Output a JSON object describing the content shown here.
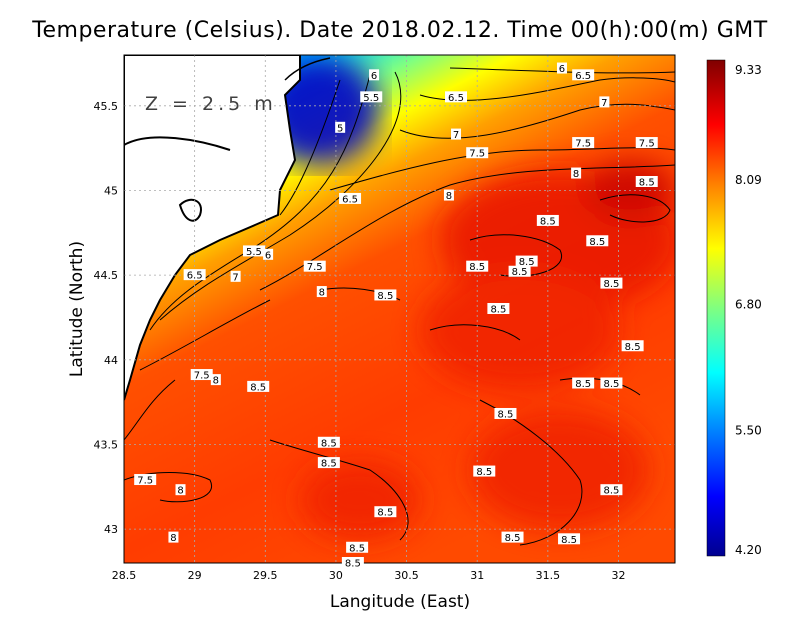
{
  "title": "Temperature (Celsius). Date 2018.02.12. Time 00(h):00(m)  GMT",
  "depth_label": "Z = 2.5 m",
  "x_axis": {
    "label": "Langitude (East)",
    "ticks": [
      {
        "value": 28.5,
        "label": "28.5"
      },
      {
        "value": 29,
        "label": "29"
      },
      {
        "value": 29.5,
        "label": "29.5"
      },
      {
        "value": 30,
        "label": "30"
      },
      {
        "value": 30.5,
        "label": "30.5"
      },
      {
        "value": 31,
        "label": "31"
      },
      {
        "value": 31.5,
        "label": "31.5"
      },
      {
        "value": 32,
        "label": "32"
      }
    ],
    "range": [
      28.5,
      32.4
    ]
  },
  "y_axis": {
    "label": "Latitude (North)",
    "ticks": [
      {
        "value": 43,
        "label": "43"
      },
      {
        "value": 43.5,
        "label": "43.5"
      },
      {
        "value": 44,
        "label": "44"
      },
      {
        "value": 44.5,
        "label": "44.5"
      },
      {
        "value": 45,
        "label": "45"
      },
      {
        "value": 45.5,
        "label": "45.5"
      }
    ],
    "range": [
      42.8,
      45.8
    ]
  },
  "colorbar": {
    "min": 4.2,
    "max": 9.33,
    "ticks": [
      {
        "value": 9.33,
        "label": "9.33"
      },
      {
        "value": 8.09,
        "label": "8.09"
      },
      {
        "value": 6.8,
        "label": "6.80"
      },
      {
        "value": 5.5,
        "label": "5.50"
      },
      {
        "value": 4.2,
        "label": "4.20"
      }
    ],
    "colors": [
      "#00008f",
      "#0000ff",
      "#0080ff",
      "#00ffff",
      "#80ff80",
      "#ffff00",
      "#ff8000",
      "#ff0000",
      "#800000"
    ]
  },
  "contour_labels": [
    {
      "lon": 30.25,
      "lat": 45.55,
      "label": "5.5"
    },
    {
      "lon": 30.03,
      "lat": 45.37,
      "label": "5"
    },
    {
      "lon": 30.27,
      "lat": 45.68,
      "label": "6"
    },
    {
      "lon": 30.85,
      "lat": 45.55,
      "label": "6.5"
    },
    {
      "lon": 30.85,
      "lat": 45.33,
      "label": "7"
    },
    {
      "lon": 31.0,
      "lat": 45.22,
      "label": "7.5"
    },
    {
      "lon": 31.6,
      "lat": 45.72,
      "label": "6"
    },
    {
      "lon": 31.75,
      "lat": 45.68,
      "label": "6.5"
    },
    {
      "lon": 31.9,
      "lat": 45.52,
      "label": "7"
    },
    {
      "lon": 31.75,
      "lat": 45.28,
      "label": "7.5"
    },
    {
      "lon": 31.7,
      "lat": 45.1,
      "label": "8"
    },
    {
      "lon": 32.2,
      "lat": 45.28,
      "label": "7.5"
    },
    {
      "lon": 32.2,
      "lat": 45.05,
      "label": "8.5"
    },
    {
      "lon": 30.1,
      "lat": 44.95,
      "label": "6.5"
    },
    {
      "lon": 30.8,
      "lat": 44.97,
      "label": "8"
    },
    {
      "lon": 29.42,
      "lat": 44.64,
      "label": "5.5"
    },
    {
      "lon": 29.52,
      "lat": 44.62,
      "label": "6"
    },
    {
      "lon": 29.0,
      "lat": 44.5,
      "label": "6.5"
    },
    {
      "lon": 29.29,
      "lat": 44.49,
      "label": "7"
    },
    {
      "lon": 29.85,
      "lat": 44.55,
      "label": "7.5"
    },
    {
      "lon": 29.9,
      "lat": 44.4,
      "label": "8"
    },
    {
      "lon": 30.35,
      "lat": 44.38,
      "label": "8.5"
    },
    {
      "lon": 31.5,
      "lat": 44.82,
      "label": "8.5"
    },
    {
      "lon": 31.85,
      "lat": 44.7,
      "label": "8.5"
    },
    {
      "lon": 31.0,
      "lat": 44.55,
      "label": "8.5"
    },
    {
      "lon": 31.3,
      "lat": 44.52,
      "label": "8.5"
    },
    {
      "lon": 31.35,
      "lat": 44.58,
      "label": "8.5"
    },
    {
      "lon": 31.95,
      "lat": 44.45,
      "label": "8.5"
    },
    {
      "lon": 31.15,
      "lat": 44.3,
      "label": "8.5"
    },
    {
      "lon": 32.1,
      "lat": 44.08,
      "label": "8.5"
    },
    {
      "lon": 29.05,
      "lat": 43.91,
      "label": "7.5"
    },
    {
      "lon": 29.15,
      "lat": 43.88,
      "label": "8"
    },
    {
      "lon": 29.45,
      "lat": 43.84,
      "label": "8.5"
    },
    {
      "lon": 31.75,
      "lat": 43.86,
      "label": "8.5"
    },
    {
      "lon": 31.95,
      "lat": 43.86,
      "label": "8.5"
    },
    {
      "lon": 31.2,
      "lat": 43.68,
      "label": "8.5"
    },
    {
      "lon": 29.95,
      "lat": 43.51,
      "label": "8.5"
    },
    {
      "lon": 29.95,
      "lat": 43.39,
      "label": "8.5"
    },
    {
      "lon": 28.65,
      "lat": 43.29,
      "label": "7.5"
    },
    {
      "lon": 28.9,
      "lat": 43.23,
      "label": "8"
    },
    {
      "lon": 31.05,
      "lat": 43.34,
      "label": "8.5"
    },
    {
      "lon": 31.95,
      "lat": 43.23,
      "label": "8.5"
    },
    {
      "lon": 30.35,
      "lat": 43.1,
      "label": "8.5"
    },
    {
      "lon": 31.25,
      "lat": 42.95,
      "label": "8.5"
    },
    {
      "lon": 31.65,
      "lat": 42.94,
      "label": "8.5"
    },
    {
      "lon": 30.15,
      "lat": 42.89,
      "label": "8.5"
    },
    {
      "lon": 30.12,
      "lat": 42.8,
      "label": "8.5"
    },
    {
      "lon": 28.85,
      "lat": 42.95,
      "label": "8"
    }
  ]
}
